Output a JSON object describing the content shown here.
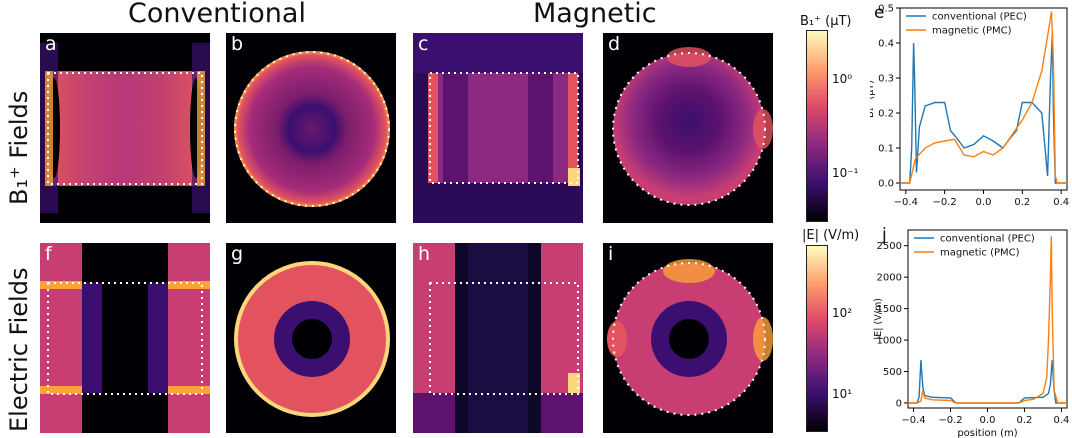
{
  "headers": {
    "conventional": "Conventional",
    "magnetic": "Magnetic"
  },
  "row_labels": {
    "b1": "B₁⁺ Fields",
    "electric": "Electric Fields"
  },
  "panel_letters": [
    "a",
    "b",
    "c",
    "d",
    "f",
    "g",
    "h",
    "i",
    "e",
    "j"
  ],
  "colorbars": {
    "b1": {
      "title": "B₁⁺ (μT)",
      "ticks": [
        "10⁰",
        "10⁻¹"
      ]
    },
    "e": {
      "title": "|E| (V/m)",
      "ticks": [
        "10²",
        "10¹"
      ]
    }
  },
  "colors": {
    "conventional": "#1f77b4",
    "magnetic": "#ff7f0e",
    "cmap_low": "#000004",
    "cmap_mid": "#b73779",
    "cmap_high": "#fcfdbf"
  },
  "chart_data": [
    {
      "panel": "e",
      "type": "line",
      "title": "",
      "xlabel": "",
      "ylabel": "B₁⁺ (μT)",
      "xlim": [
        -0.43,
        0.43
      ],
      "ylim": [
        -0.02,
        0.5
      ],
      "xticks": [
        -0.4,
        -0.2,
        0.0,
        0.2,
        0.4
      ],
      "xtick_labels": [
        "−0.4",
        "−0.2",
        "0.0",
        "0.2",
        "0.4"
      ],
      "yticks": [
        0.0,
        0.1,
        0.2,
        0.3,
        0.4,
        0.5
      ],
      "ytick_labels": [
        "0.0",
        "0.1",
        "0.2",
        "0.3",
        "0.4",
        "0.5"
      ],
      "legend_position": "top-left",
      "series": [
        {
          "name": "conventional (PEC)",
          "x": [
            -0.43,
            -0.38,
            -0.37,
            -0.36,
            -0.355,
            -0.345,
            -0.33,
            -0.3,
            -0.25,
            -0.2,
            -0.17,
            -0.14,
            -0.1,
            -0.05,
            0.0,
            0.05,
            0.1,
            0.14,
            0.17,
            0.2,
            0.25,
            0.3,
            0.33,
            0.345,
            0.355,
            0.36,
            0.37,
            0.38,
            0.43
          ],
          "y": [
            0.0,
            0.0,
            0.1,
            0.4,
            0.3,
            0.03,
            0.16,
            0.22,
            0.23,
            0.23,
            0.15,
            0.13,
            0.1,
            0.11,
            0.135,
            0.12,
            0.1,
            0.13,
            0.15,
            0.23,
            0.23,
            0.2,
            0.02,
            0.3,
            0.43,
            0.2,
            0.0,
            0.0,
            0.0
          ]
        },
        {
          "name": "magnetic (PMC)",
          "x": [
            -0.43,
            -0.38,
            -0.35,
            -0.3,
            -0.25,
            -0.2,
            -0.15,
            -0.1,
            -0.05,
            0.0,
            0.05,
            0.1,
            0.15,
            0.2,
            0.25,
            0.3,
            0.33,
            0.35,
            0.36,
            0.37,
            0.38,
            0.43
          ],
          "y": [
            0.0,
            0.0,
            0.07,
            0.1,
            0.115,
            0.12,
            0.125,
            0.08,
            0.075,
            0.09,
            0.08,
            0.1,
            0.14,
            0.18,
            0.23,
            0.32,
            0.42,
            0.49,
            0.35,
            0.02,
            0.0,
            0.0
          ]
        }
      ]
    },
    {
      "panel": "j",
      "type": "line",
      "title": "",
      "xlabel": "position (m)",
      "ylabel": "|E| (V/m)",
      "xlim": [
        -0.43,
        0.43
      ],
      "ylim": [
        -80,
        2750
      ],
      "xticks": [
        -0.4,
        -0.2,
        0.0,
        0.2,
        0.4
      ],
      "xtick_labels": [
        "−0.4",
        "−0.2",
        "0.0",
        "0.2",
        "0.4"
      ],
      "yticks": [
        0,
        500,
        1000,
        1500,
        2000,
        2500
      ],
      "ytick_labels": [
        "0",
        "500",
        "1000",
        "1500",
        "2000",
        "2500"
      ],
      "legend_position": "top-left",
      "series": [
        {
          "name": "conventional (PEC)",
          "x": [
            -0.43,
            -0.38,
            -0.37,
            -0.36,
            -0.35,
            -0.34,
            -0.3,
            -0.2,
            -0.17,
            0.0,
            0.17,
            0.2,
            0.3,
            0.33,
            0.34,
            0.35,
            0.36,
            0.37,
            0.38,
            0.43
          ],
          "y": [
            0,
            0,
            100,
            680,
            250,
            120,
            90,
            80,
            0,
            0,
            0,
            80,
            90,
            150,
            300,
            680,
            200,
            0,
            0,
            0
          ]
        },
        {
          "name": "magnetic (PMC)",
          "x": [
            -0.43,
            -0.38,
            -0.36,
            -0.35,
            -0.34,
            -0.3,
            -0.2,
            -0.17,
            0.0,
            0.17,
            0.2,
            0.25,
            0.3,
            0.32,
            0.33,
            0.34,
            0.345,
            0.35,
            0.36,
            0.38,
            0.43
          ],
          "y": [
            0,
            0,
            30,
            200,
            80,
            50,
            40,
            0,
            0,
            0,
            40,
            60,
            150,
            400,
            1000,
            2000,
            2650,
            1500,
            200,
            0,
            0
          ]
        }
      ]
    }
  ]
}
